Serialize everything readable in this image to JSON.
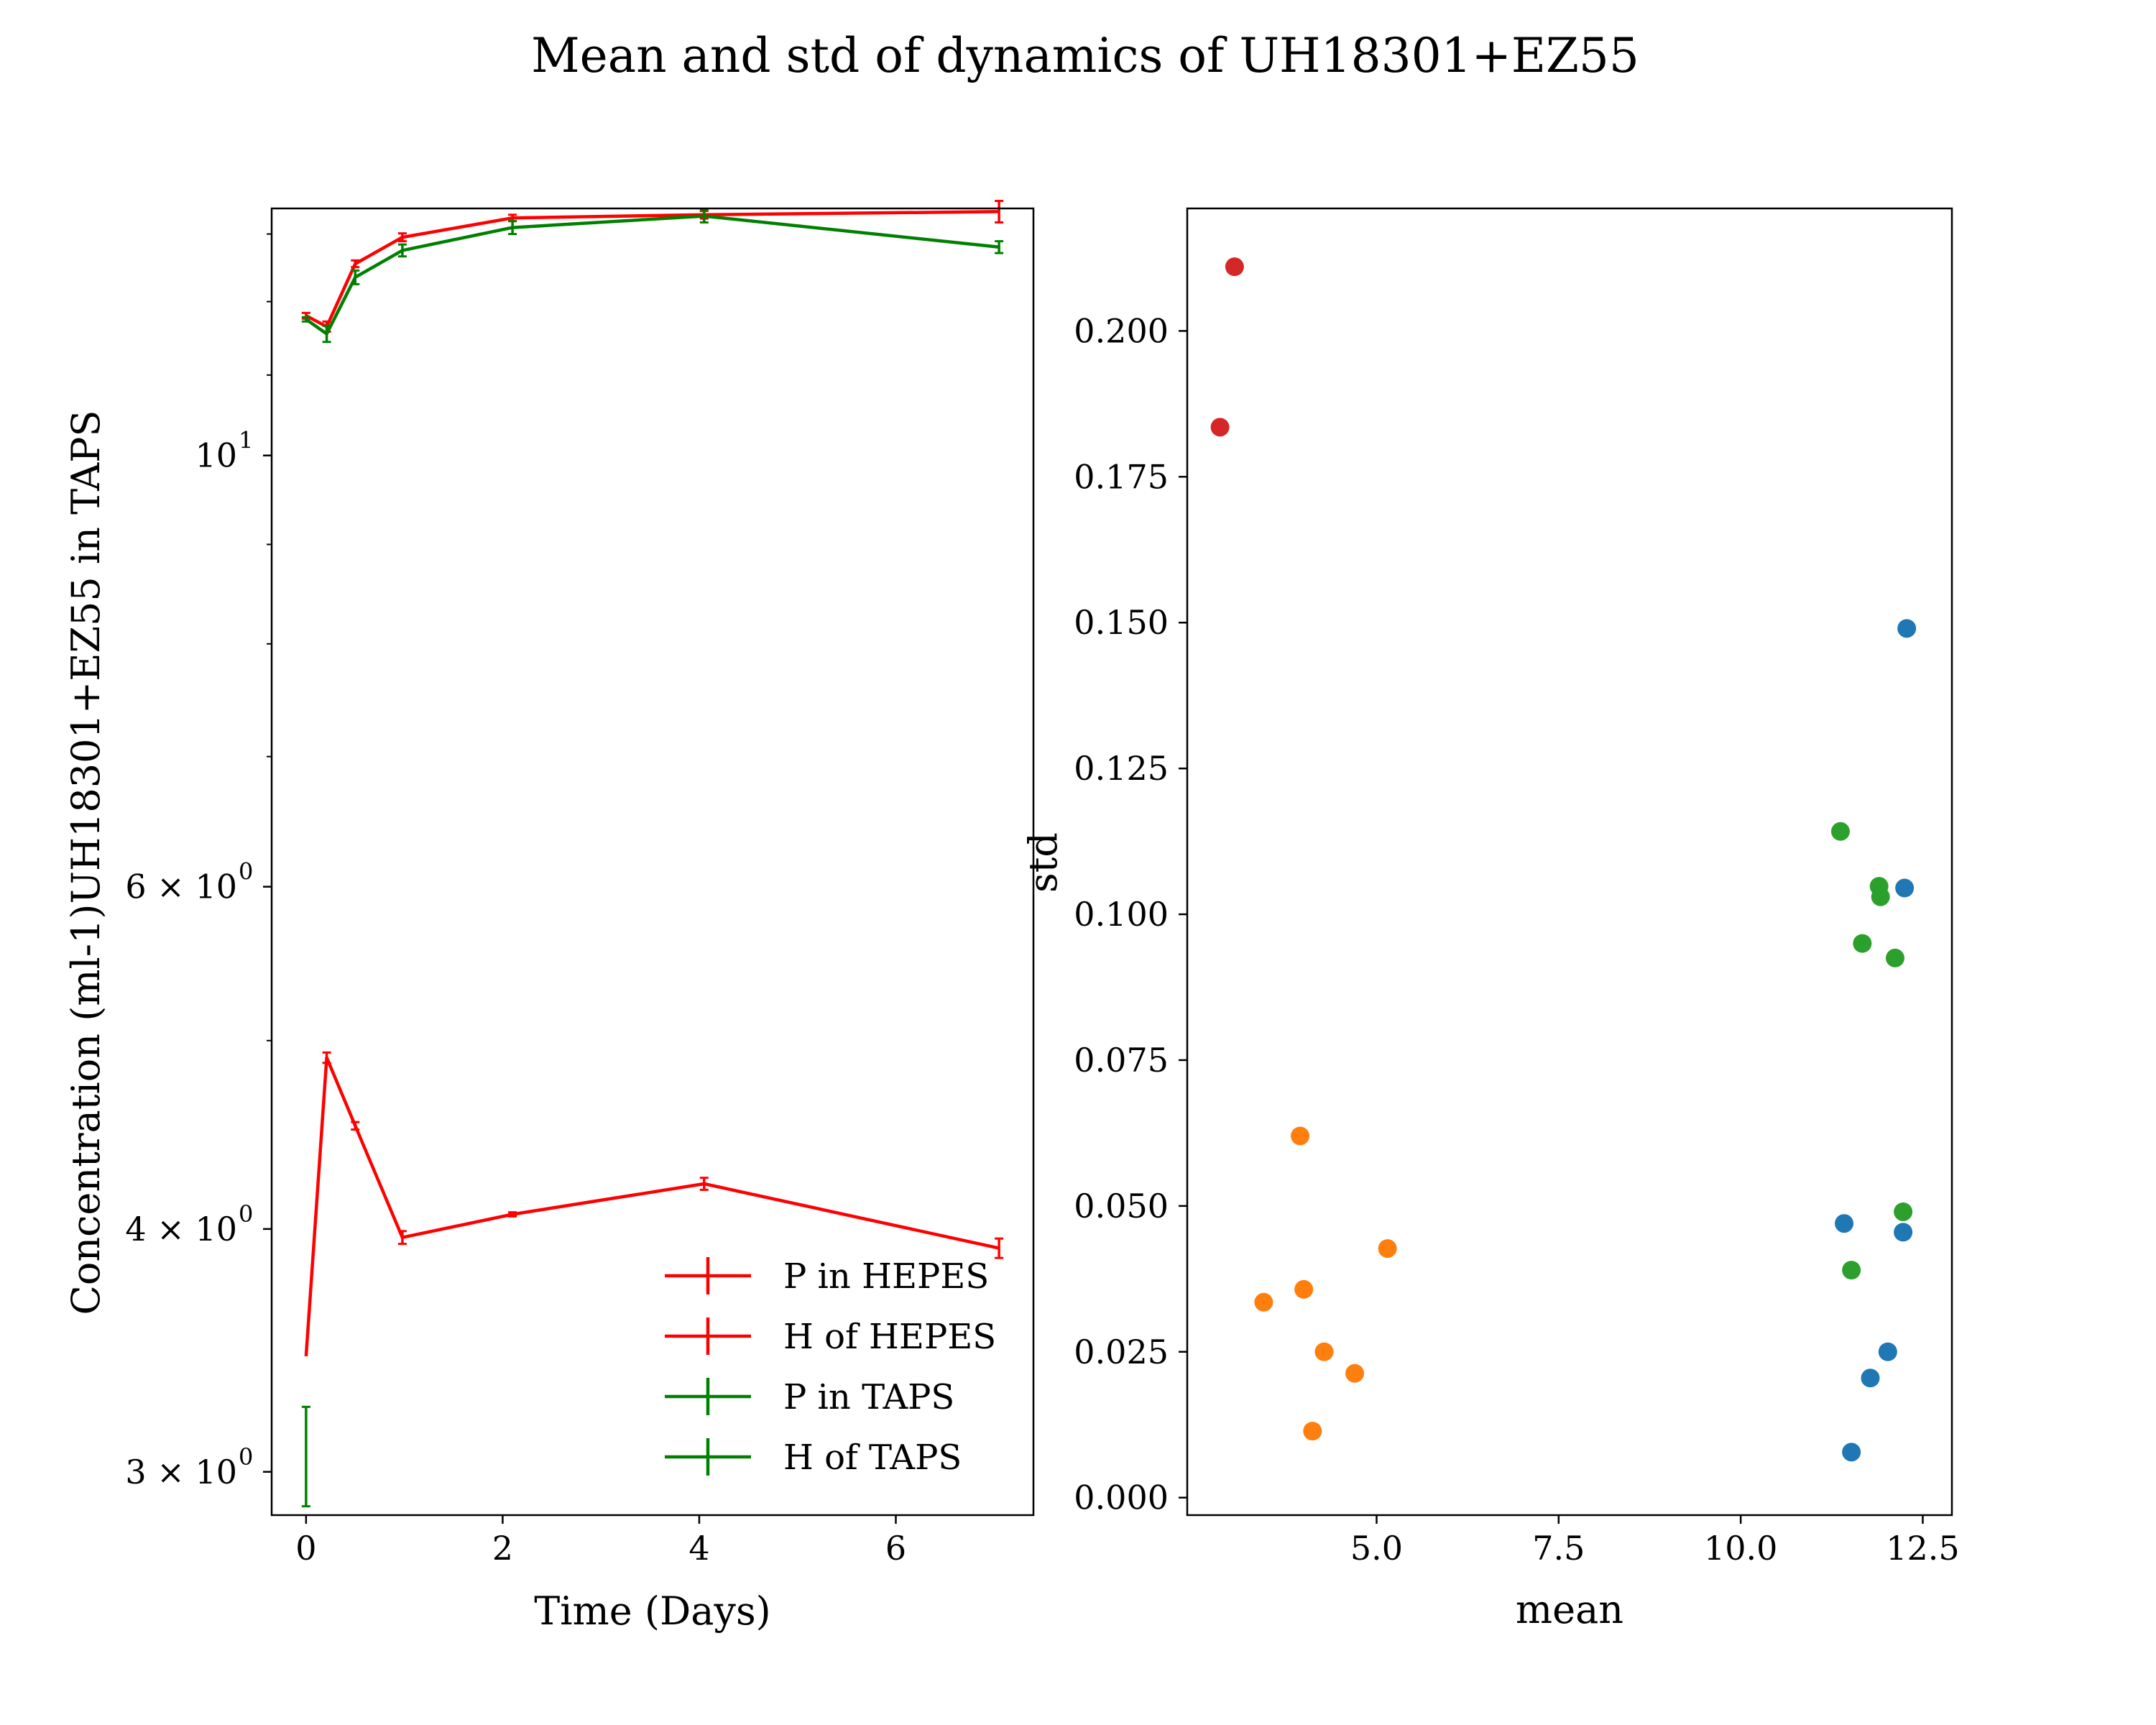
{
  "figure": {
    "title": "Mean and std of dynamics of UH18301+EZ55"
  },
  "chart_data": [
    {
      "type": "line",
      "xlabel": "Time (Days)",
      "ylabel": "Concentration (ml-1)UH18301+EZ55 in TAPS",
      "xlim": [
        -0.35,
        7.4
      ],
      "ylim": [
        2.85,
        13.4
      ],
      "yscale": "log",
      "xticks": [
        {
          "value": 0,
          "label": "0"
        },
        {
          "value": 2,
          "label": "2"
        },
        {
          "value": 4,
          "label": "4"
        },
        {
          "value": 6,
          "label": "6"
        }
      ],
      "yticks": [
        {
          "value": 3,
          "label": "3 × 10",
          "exp": "0"
        },
        {
          "value": 4,
          "label": "4 × 10",
          "exp": "0"
        },
        {
          "value": 6,
          "label": "6 × 10",
          "exp": "0"
        },
        {
          "value": 10,
          "label": "10",
          "exp": "1"
        }
      ],
      "legend": "lower-right",
      "grid": false,
      "series": [
        {
          "name": "P in HEPES",
          "color": "#ff0000",
          "x": [
            0,
            0.21,
            0.5,
            0.98,
            2.1,
            4.05,
            7.05
          ],
          "y": [
            11.8,
            11.65,
            12.55,
            12.95,
            13.25,
            13.3,
            13.35
          ],
          "err": [
            0.04,
            0.07,
            0.05,
            0.06,
            0.05,
            0.06,
            0.17
          ]
        },
        {
          "name": "H of HEPES",
          "color": "#ff0000",
          "x": [
            0,
            0.21,
            0.5,
            0.98,
            2.1,
            4.05,
            7.05
          ],
          "y": [
            3.44,
            4.9,
            4.52,
            3.96,
            4.07,
            4.22,
            3.91
          ],
          "err": [
            0.0,
            0.03,
            0.02,
            0.03,
            0.01,
            0.03,
            0.045
          ]
        },
        {
          "name": "P in TAPS",
          "color": "#008000",
          "x": [
            0,
            0.21,
            0.5,
            0.98,
            2.1,
            4.05,
            7.05
          ],
          "y": [
            11.75,
            11.55,
            12.35,
            12.75,
            13.1,
            13.28,
            12.8
          ],
          "err": [
            0.03,
            0.11,
            0.1,
            0.09,
            0.1,
            0.1,
            0.09
          ]
        },
        {
          "name": "H of TAPS",
          "color": "#008000",
          "x": [
            0
          ],
          "y": [
            3.06
          ],
          "err": [
            0.18
          ]
        }
      ]
    },
    {
      "type": "scatter",
      "xlabel": "mean",
      "ylabel": "std",
      "xlim": [
        2.4,
        12.9
      ],
      "ylim": [
        -0.003,
        0.221
      ],
      "xticks": [
        {
          "value": 5.0,
          "label": "5.0"
        },
        {
          "value": 7.5,
          "label": "7.5"
        },
        {
          "value": 10.0,
          "label": "10.0"
        },
        {
          "value": 12.5,
          "label": "12.5"
        }
      ],
      "yticks": [
        {
          "value": 0.0,
          "label": "0.000"
        },
        {
          "value": 0.025,
          "label": "0.025"
        },
        {
          "value": 0.05,
          "label": "0.050"
        },
        {
          "value": 0.075,
          "label": "0.075"
        },
        {
          "value": 0.1,
          "label": "0.100"
        },
        {
          "value": 0.125,
          "label": "0.125"
        },
        {
          "value": 0.15,
          "label": "0.150"
        },
        {
          "value": 0.175,
          "label": "0.175"
        },
        {
          "value": 0.2,
          "label": "0.200"
        }
      ],
      "grid": false,
      "series": [
        {
          "color": "#1f77b4",
          "x": [
            12.28,
            12.25,
            11.42,
            12.23,
            12.02,
            11.78,
            11.52
          ],
          "y": [
            0.149,
            0.1045,
            0.047,
            0.0455,
            0.025,
            0.0205,
            0.0078
          ]
        },
        {
          "color": "#ff7f0e",
          "x": [
            3.95,
            3.45,
            4.0,
            5.15,
            4.28,
            4.7,
            4.12
          ],
          "y": [
            0.062,
            0.0335,
            0.0357,
            0.0427,
            0.025,
            0.0213,
            0.0114
          ]
        },
        {
          "color": "#2ca02c",
          "x": [
            11.37,
            11.9,
            11.92,
            11.67,
            12.12,
            12.23,
            11.52
          ],
          "y": [
            0.1142,
            0.1048,
            0.103,
            0.095,
            0.0925,
            0.049,
            0.039
          ]
        },
        {
          "color": "#d62728",
          "x": [
            3.05,
            2.85
          ],
          "y": [
            0.211,
            0.1835
          ]
        }
      ]
    }
  ]
}
